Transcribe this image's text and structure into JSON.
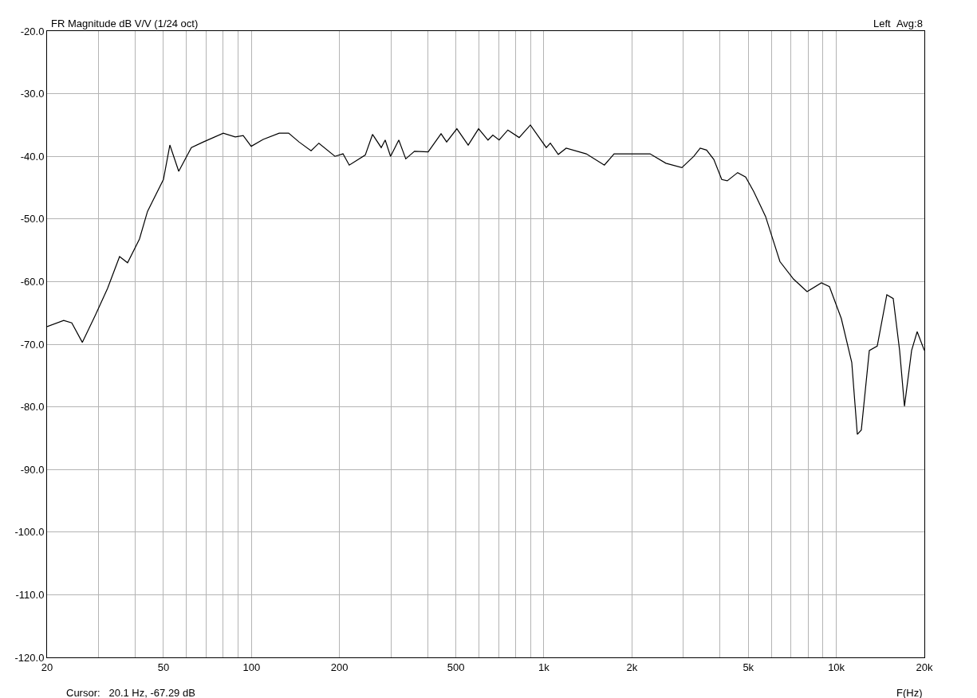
{
  "chart_data": {
    "type": "line",
    "title": "FR Magnitude dB V/V (1/24 oct)",
    "xlabel": "F(Hz)",
    "annotations": [
      "Left  Avg:8",
      "Cursor:   20.1 Hz, -67.29 dB"
    ],
    "log": "x",
    "grid": true,
    "marker": "none",
    "line_style": "solid",
    "xlim": [
      20,
      20000
    ],
    "ylim": [
      -120,
      -20
    ],
    "xticks": [
      {
        "value": 20,
        "label": "20"
      },
      {
        "value": 30,
        "label": null
      },
      {
        "value": 40,
        "label": null
      },
      {
        "value": 50,
        "label": "50"
      },
      {
        "value": 60,
        "label": null
      },
      {
        "value": 70,
        "label": null
      },
      {
        "value": 80,
        "label": null
      },
      {
        "value": 90,
        "label": null
      },
      {
        "value": 100,
        "label": "100"
      },
      {
        "value": 200,
        "label": "200"
      },
      {
        "value": 300,
        "label": null
      },
      {
        "value": 400,
        "label": null
      },
      {
        "value": 500,
        "label": "500"
      },
      {
        "value": 600,
        "label": null
      },
      {
        "value": 700,
        "label": null
      },
      {
        "value": 800,
        "label": null
      },
      {
        "value": 900,
        "label": null
      },
      {
        "value": 1000,
        "label": "1k"
      },
      {
        "value": 2000,
        "label": "2k"
      },
      {
        "value": 3000,
        "label": null
      },
      {
        "value": 4000,
        "label": null
      },
      {
        "value": 5000,
        "label": "5k"
      },
      {
        "value": 6000,
        "label": null
      },
      {
        "value": 7000,
        "label": null
      },
      {
        "value": 8000,
        "label": null
      },
      {
        "value": 9000,
        "label": null
      },
      {
        "value": 10000,
        "label": "10k"
      },
      {
        "value": 20000,
        "label": "20k"
      }
    ],
    "yticks": [
      {
        "value": -20,
        "label": "-20.0"
      },
      {
        "value": -30,
        "label": "-30.0"
      },
      {
        "value": -40,
        "label": "-40.0"
      },
      {
        "value": -50,
        "label": "-50.0"
      },
      {
        "value": -60,
        "label": "-60.0"
      },
      {
        "value": -70,
        "label": "-70.0"
      },
      {
        "value": -80,
        "label": "-80.0"
      },
      {
        "value": -90,
        "label": "-90.0"
      },
      {
        "value": -100,
        "label": "-100.0"
      },
      {
        "value": -110,
        "label": "-110.0"
      },
      {
        "value": -120,
        "label": "-120.0"
      }
    ],
    "series": [
      {
        "color": "#000000",
        "x": [
          20,
          22.8,
          24.3,
          26.4,
          29.3,
          32.2,
          35.4,
          37.7,
          41.4,
          44.1,
          50,
          52.6,
          56.4,
          62.3,
          68.5,
          80.1,
          88,
          93.7,
          99.8,
          109.6,
          124.4,
          134,
          145.4,
          159.9,
          170,
          193,
          205.6,
          216,
          245,
          259.4,
          277.8,
          286.6,
          299,
          319,
          337,
          361,
          402,
          445,
          465,
          504,
          551,
          598,
          644,
          669,
          703,
          753,
          823,
          899,
          1019,
          1052,
          1120,
          1192,
          1396,
          1610,
          1738,
          2099,
          2306,
          2612,
          2964,
          3256,
          3424,
          3600,
          3811,
          4057,
          4238,
          4598,
          4897,
          5216,
          5728,
          6414,
          7140,
          7944,
          8892,
          9472,
          10400,
          11292,
          11798,
          12174,
          12966,
          13800,
          14884,
          15652,
          16460,
          17100,
          18088,
          18900,
          20000
        ],
        "values": [
          -67.2,
          -66.2,
          -66.6,
          -69.7,
          -65.3,
          -61.1,
          -56.0,
          -57.0,
          -53.2,
          -48.8,
          -43.7,
          -38.2,
          -42.4,
          -38.6,
          -37.7,
          -36.3,
          -36.9,
          -36.7,
          -38.4,
          -37.3,
          -36.3,
          -36.3,
          -37.7,
          -39.1,
          -37.9,
          -40.0,
          -39.6,
          -41.4,
          -39.8,
          -36.5,
          -38.6,
          -37.4,
          -40.0,
          -37.4,
          -40.4,
          -39.2,
          -39.3,
          -36.4,
          -37.7,
          -35.6,
          -38.2,
          -35.6,
          -37.4,
          -36.6,
          -37.4,
          -35.8,
          -37.0,
          -35.0,
          -38.6,
          -37.9,
          -39.7,
          -38.7,
          -39.6,
          -41.4,
          -39.6,
          -39.6,
          -39.6,
          -41.1,
          -41.8,
          -40.0,
          -38.7,
          -39.0,
          -40.5,
          -43.7,
          -43.9,
          -42.6,
          -43.3,
          -45.6,
          -49.6,
          -56.8,
          -59.6,
          -61.6,
          -60.2,
          -60.8,
          -65.9,
          -72.9,
          -84.4,
          -83.7,
          -71.0,
          -70.3,
          -62.1,
          -62.7,
          -71.0,
          -79.9,
          -71.0,
          -68.0,
          -71.0
        ]
      }
    ]
  }
}
